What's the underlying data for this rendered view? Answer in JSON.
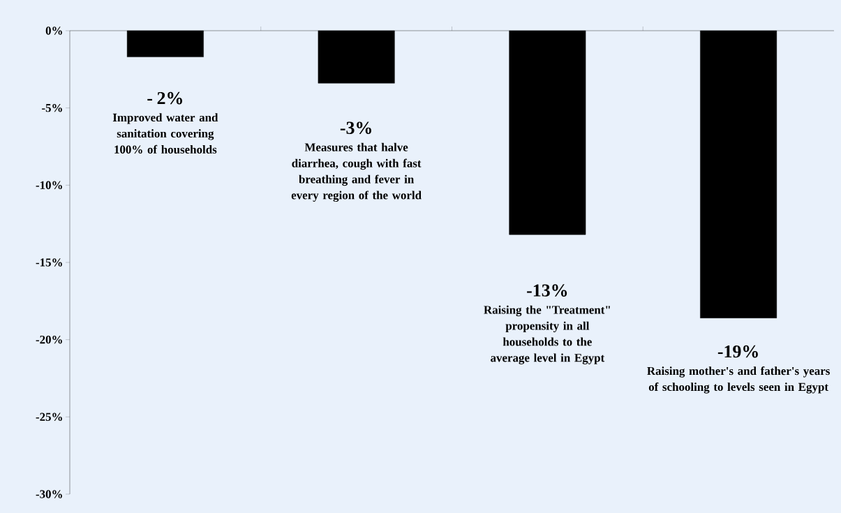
{
  "chart_data": {
    "type": "bar",
    "categories": [
      "Improved water and sanitation covering 100% of households",
      "Measures that halve diarrhea, cough with fast breathing and fever in every region of the world",
      "Raising the \"Treatment\" propensity in all households to the average level in Egypt",
      "Raising mother's and father's years of schooling to levels seen in Egypt"
    ],
    "values": [
      -1.7,
      -3.4,
      -13.2,
      -18.6
    ],
    "value_labels": [
      "- 2%",
      "-3%",
      "-13%",
      "-19%"
    ],
    "color": "#000000",
    "ylim": [
      -30,
      0
    ],
    "yticks": [
      {
        "value": 0,
        "label": "0%"
      },
      {
        "value": -5,
        "label": "-5%"
      },
      {
        "value": -10,
        "label": "-10%"
      },
      {
        "value": -15,
        "label": "-15%"
      },
      {
        "value": -20,
        "label": "-20%"
      },
      {
        "value": -25,
        "label": "-25%"
      },
      {
        "value": -30,
        "label": "-30%"
      }
    ]
  }
}
